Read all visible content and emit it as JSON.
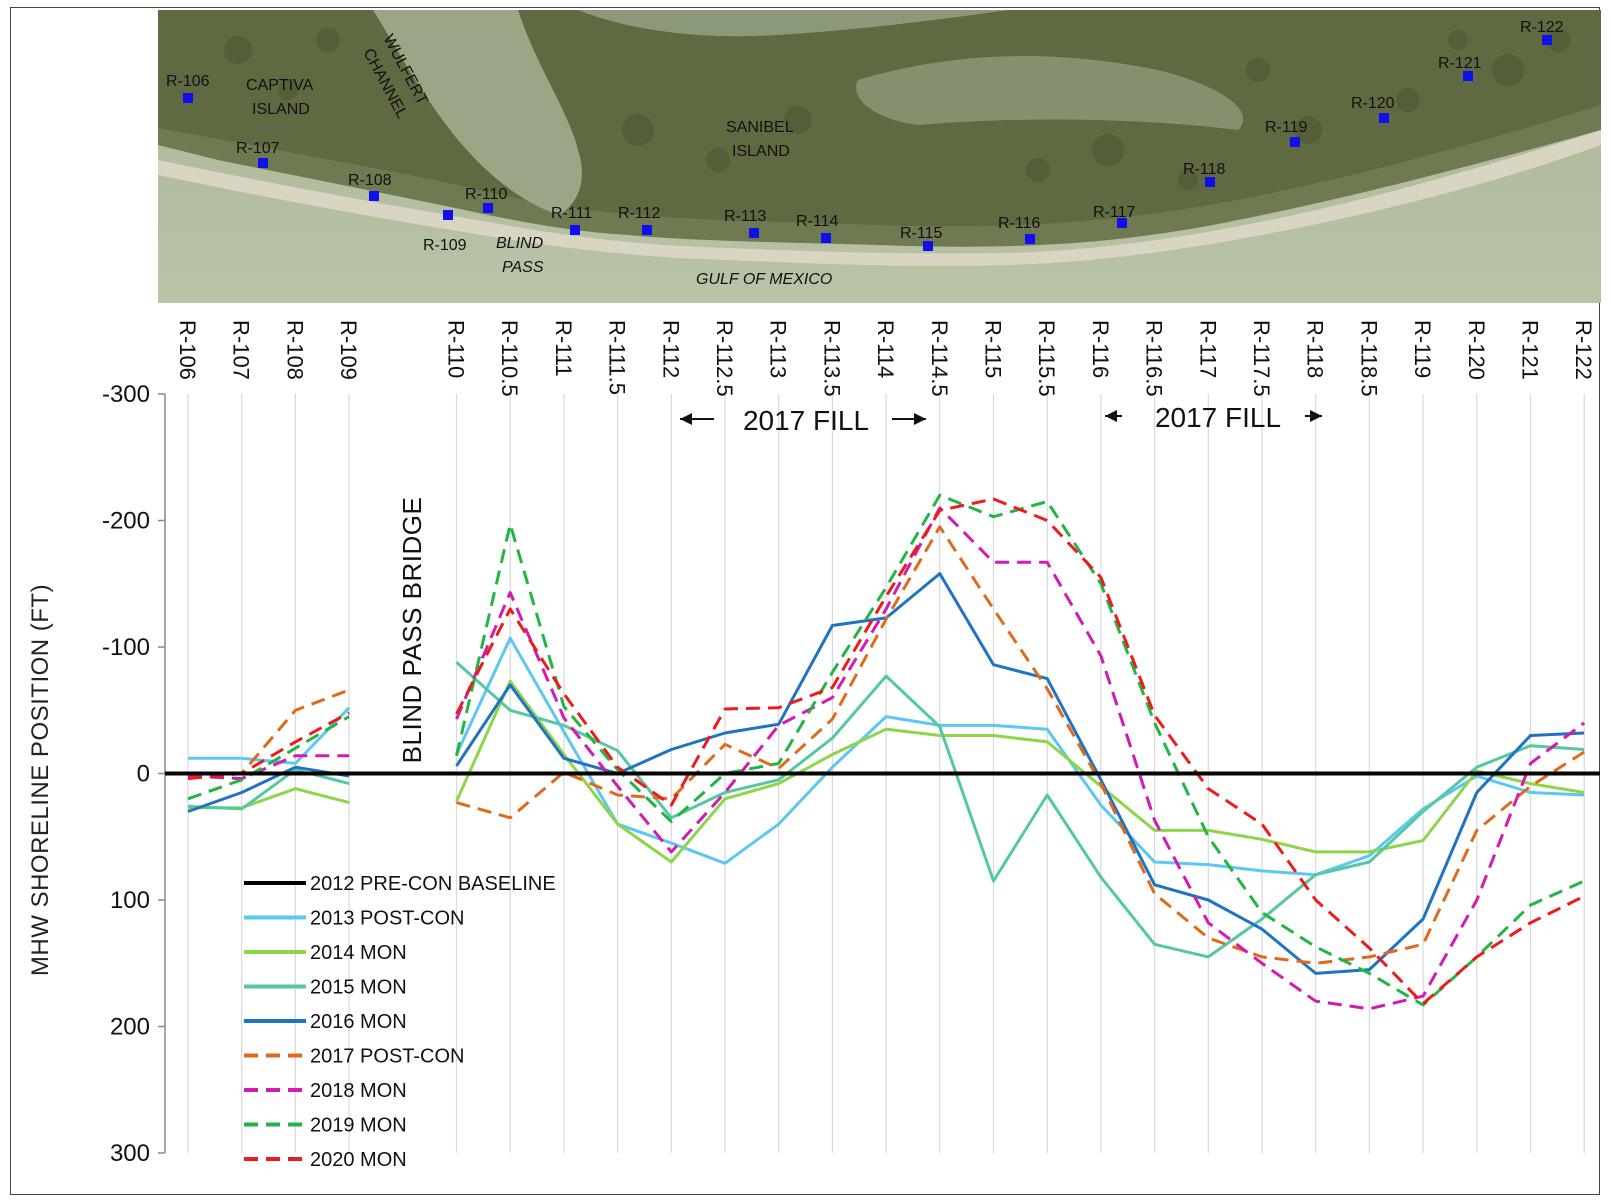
{
  "map": {
    "title_labels": {
      "captiva": "CAPTIVA",
      "captiva2": "ISLAND",
      "wulfert": "WULFERT",
      "wulfert2": "CHANNEL",
      "sanibel": "SANIBEL",
      "sanibel2": "ISLAND",
      "blind": "BLIND",
      "blind2": "PASS",
      "gulf": "GULF OF MEXICO"
    },
    "monuments": [
      "R-106",
      "R-107",
      "R-108",
      "R-109",
      "R-110",
      "R-111",
      "R-112",
      "R-113",
      "R-114",
      "R-115",
      "R-116",
      "R-117",
      "R-118",
      "R-119",
      "R-120",
      "R-121",
      "R-122"
    ],
    "marker_color": "#1010ee"
  },
  "annotations": {
    "fill1": "2017 FILL",
    "fill2": "2017 FILL",
    "bridge": "BLIND PASS BRIDGE"
  },
  "chart_data": {
    "type": "line",
    "ylabel": "MHW SHORELINE POSITION (FT)",
    "xlabel": "",
    "ylim": [
      -300,
      300
    ],
    "y_inverted": true,
    "yticks": [
      -300,
      -200,
      -100,
      0,
      100,
      200,
      300
    ],
    "grid": "vertical",
    "categories": [
      "R-106",
      "R-107",
      "R-108",
      "R-109",
      "R-110",
      "R-110.5",
      "R-111",
      "R-111.5",
      "R-112",
      "R-112.5",
      "R-113",
      "R-113.5",
      "R-114",
      "R-114.5",
      "R-115",
      "R-115.5",
      "R-116",
      "R-116.5",
      "R-117",
      "R-117.5",
      "R-118",
      "R-118.5",
      "R-119",
      "R-120",
      "R-121",
      "R-122"
    ],
    "x_positions": [
      0,
      1,
      2,
      3,
      5,
      6,
      7,
      8,
      9,
      10,
      11,
      12,
      13,
      14,
      15,
      16,
      17,
      18,
      19,
      20,
      21,
      22,
      23,
      24,
      25,
      26
    ],
    "legend_position": "bottom-left",
    "series": [
      {
        "name": "2012 PRE-CON BASELINE",
        "color": "#000000",
        "dash": "solid",
        "width": 4,
        "values": [
          0,
          0,
          0,
          0,
          0,
          0,
          0,
          0,
          0,
          0,
          0,
          0,
          0,
          0,
          0,
          0,
          0,
          0,
          0,
          0,
          0,
          0,
          0,
          0,
          0,
          0
        ]
      },
      {
        "name": "2013 POST-CON",
        "color": "#5cc8f2",
        "dash": "solid",
        "width": 3,
        "values": [
          -12,
          -12,
          -8,
          -52,
          -15,
          -107,
          -33,
          40,
          55,
          71,
          40,
          -5,
          -45,
          -38,
          -38,
          -35,
          25,
          70,
          72,
          77,
          80,
          65,
          28,
          2,
          15,
          17
        ]
      },
      {
        "name": "2014 MON",
        "color": "#8ed54b",
        "dash": "solid",
        "width": 3,
        "values": [
          27,
          27,
          12,
          23,
          22,
          -73,
          -15,
          40,
          70,
          20,
          8,
          -15,
          -35,
          -30,
          -30,
          -25,
          10,
          45,
          45,
          52,
          62,
          62,
          53,
          -2,
          8,
          15
        ]
      },
      {
        "name": "2015 MON",
        "color": "#55c7a3",
        "dash": "solid",
        "width": 3,
        "values": [
          26,
          28,
          -3,
          8,
          -88,
          -50,
          -38,
          -18,
          35,
          15,
          5,
          -28,
          -77,
          -37,
          85,
          17,
          82,
          135,
          145,
          115,
          80,
          70,
          30,
          -5,
          -22,
          -19
        ]
      },
      {
        "name": "2016 MON",
        "color": "#1f73c2",
        "dash": "solid",
        "width": 3,
        "values": [
          30,
          15,
          -5,
          2,
          -6,
          -70,
          -12,
          0,
          -19,
          -32,
          -39,
          -117,
          -123,
          -158,
          -86,
          -75,
          5,
          88,
          100,
          123,
          158,
          155,
          115,
          15,
          -30,
          -32
        ]
      },
      {
        "name": "2017 POST-CON",
        "color": "#e06a1c",
        "dash": "dashed",
        "width": 3,
        "values": [
          2,
          0,
          -50,
          -66,
          23,
          35,
          -1,
          17,
          20,
          -23,
          -4,
          -43,
          -122,
          -195,
          -130,
          -67,
          8,
          95,
          130,
          145,
          150,
          145,
          135,
          45,
          10,
          -17
        ]
      },
      {
        "name": "2018 MON",
        "color": "#d31ab2",
        "dash": "dashed",
        "width": 3,
        "values": [
          2,
          4,
          -14,
          -14,
          -43,
          -143,
          -44,
          10,
          62,
          15,
          -38,
          -60,
          -130,
          -210,
          -167,
          -167,
          -93,
          37,
          118,
          150,
          180,
          186,
          176,
          100,
          -8,
          -40
        ]
      },
      {
        "name": "2019 MON",
        "color": "#22b545",
        "dash": "dashed",
        "width": 3,
        "values": [
          20,
          5,
          -20,
          -45,
          -14,
          -197,
          -53,
          -3,
          38,
          0,
          -8,
          -80,
          -147,
          -220,
          -203,
          -215,
          -150,
          -40,
          50,
          110,
          137,
          158,
          183,
          145,
          104,
          85
        ]
      },
      {
        "name": "2020 MON",
        "color": "#ee1b1b",
        "dash": "dashed",
        "width": 3,
        "values": [
          4,
          0,
          -25,
          -48,
          -47,
          -130,
          -63,
          -5,
          25,
          -51,
          -52,
          -68,
          -140,
          -208,
          -217,
          -200,
          -155,
          -46,
          12,
          40,
          100,
          138,
          182,
          145,
          118,
          97
        ]
      }
    ]
  }
}
